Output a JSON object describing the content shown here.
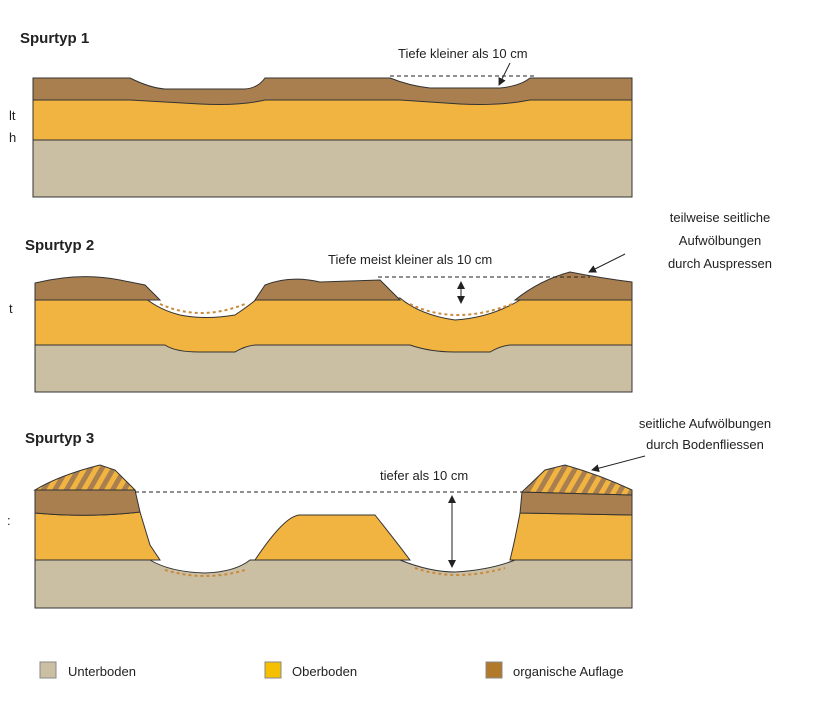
{
  "panels": [
    {
      "title": "Spurtyp 1",
      "annotations": [
        "Tiefe kleiner als 10 cm"
      ]
    },
    {
      "title": "Spurtyp 2",
      "annotations": [
        "Tiefe meist kleiner als 10 cm",
        "teilweise seitliche",
        "Aufwölbungen",
        "durch Auspressen"
      ]
    },
    {
      "title": "Spurtyp 3",
      "annotations": [
        "tiefer als 10 cm",
        "seitliche Aufwölbungen",
        "durch Bodenfliessen"
      ]
    }
  ],
  "cropped_text": [
    "lt",
    "h",
    "t",
    ":"
  ],
  "legend": [
    "Unterboden",
    "Oberboden",
    "organische Auflage"
  ]
}
